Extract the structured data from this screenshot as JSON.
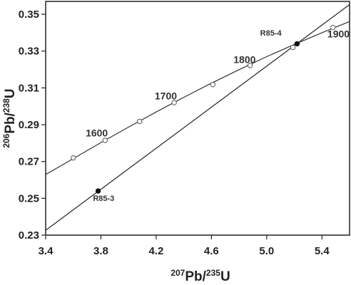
{
  "chart_data": {
    "type": "scatter",
    "title": "",
    "xlabel": {
      "pre_sup": "207",
      "main1": "Pb/",
      "mid_sup": "235",
      "main2": "U"
    },
    "ylabel": {
      "pre_sup": "206",
      "main1": "Pb/",
      "mid_sup": "238",
      "main2": "U"
    },
    "xlim": [
      3.4,
      5.6
    ],
    "ylim": [
      0.23,
      0.357
    ],
    "x_ticks": [
      3.4,
      3.8,
      4.2,
      4.6,
      5.0,
      5.4
    ],
    "x_tick_labels": [
      "3.4",
      "3.8",
      "4.2",
      "4.6",
      "5.0",
      "5.4"
    ],
    "y_ticks": [
      0.23,
      0.25,
      0.27,
      0.29,
      0.31,
      0.33,
      0.35
    ],
    "y_tick_labels": [
      "0.23",
      "0.25",
      "0.27",
      "0.29",
      "0.31",
      "0.33",
      "0.35"
    ],
    "grid": false,
    "concordia": {
      "curve": [
        [
          3.4,
          0.2629
        ],
        [
          3.6,
          0.2716
        ],
        [
          3.8,
          0.2803
        ],
        [
          4.0,
          0.2887
        ],
        [
          4.2,
          0.2969
        ],
        [
          4.4,
          0.3049
        ],
        [
          4.6,
          0.3126
        ],
        [
          4.8,
          0.3199
        ],
        [
          5.0,
          0.327
        ],
        [
          5.2,
          0.3336
        ],
        [
          5.4,
          0.34
        ],
        [
          5.6,
          0.3461
        ]
      ],
      "age_markers": [
        {
          "x": 3.6,
          "y": 0.272
        },
        {
          "x": 3.83,
          "y": 0.2815
        },
        {
          "x": 4.08,
          "y": 0.2918
        },
        {
          "x": 4.33,
          "y": 0.302
        },
        {
          "x": 4.61,
          "y": 0.3118
        },
        {
          "x": 4.88,
          "y": 0.3222
        },
        {
          "x": 5.19,
          "y": 0.332
        },
        {
          "x": 5.48,
          "y": 0.3428
        }
      ],
      "age_labels": [
        {
          "text": "1600",
          "x": 3.77,
          "y": 0.2836
        },
        {
          "text": "1700",
          "x": 4.27,
          "y": 0.3038
        },
        {
          "text": "1800",
          "x": 4.84,
          "y": 0.3235
        },
        {
          "text": "1900",
          "x": 5.52,
          "y": 0.3375
        }
      ]
    },
    "discordia": {
      "points": [
        [
          3.4,
          0.2326
        ],
        [
          5.6,
          0.3553
        ]
      ]
    },
    "samples": [
      {
        "name": "R85-3",
        "x": 3.78,
        "y": 0.254,
        "label_x": 3.82,
        "label_y": 0.2485
      },
      {
        "name": "R85-4",
        "x": 5.22,
        "y": 0.334,
        "label_x": 5.03,
        "label_y": 0.3385
      }
    ]
  }
}
